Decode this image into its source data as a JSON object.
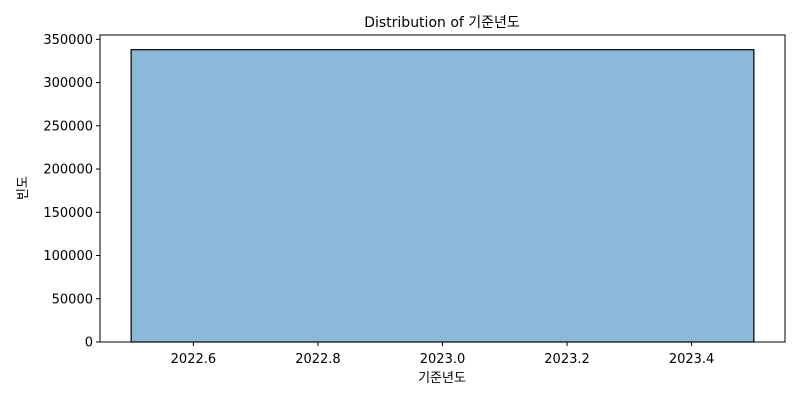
{
  "chart_data": {
    "type": "bar",
    "title": "Distribution of 기준년도",
    "xlabel": "기준년도",
    "ylabel": "빈도",
    "bins": [
      {
        "x_start": 2022.5,
        "x_end": 2023.5,
        "value": 338000
      }
    ],
    "xlim": [
      2022.45,
      2023.55
    ],
    "ylim": [
      0,
      355000
    ],
    "x_ticks": [
      "2022.6",
      "2022.8",
      "2023.0",
      "2023.2",
      "2023.4"
    ],
    "y_ticks": [
      "0",
      "50000",
      "100000",
      "150000",
      "200000",
      "250000",
      "300000",
      "350000"
    ],
    "grid": false,
    "legend": "none",
    "bar_color": "#8cb8d9",
    "edge_color": "#000000"
  }
}
